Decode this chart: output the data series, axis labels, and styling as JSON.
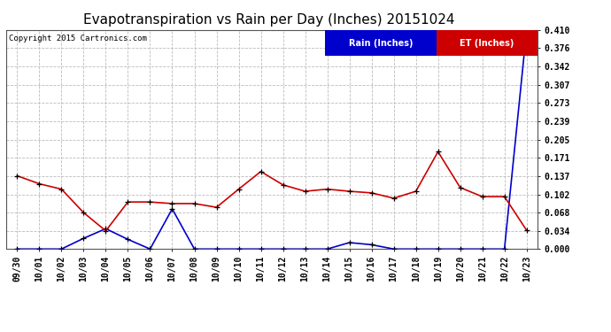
{
  "title": "Evapotranspiration vs Rain per Day (Inches) 20151024",
  "copyright": "Copyright 2015 Cartronics.com",
  "x_labels": [
    "09/30",
    "10/01",
    "10/02",
    "10/03",
    "10/04",
    "10/05",
    "10/06",
    "10/07",
    "10/08",
    "10/09",
    "10/10",
    "10/11",
    "10/12",
    "10/13",
    "10/14",
    "10/15",
    "10/16",
    "10/17",
    "10/18",
    "10/19",
    "10/20",
    "10/21",
    "10/22",
    "10/23"
  ],
  "et_values": [
    0.137,
    0.122,
    0.112,
    0.068,
    0.034,
    0.088,
    0.088,
    0.085,
    0.085,
    0.078,
    0.112,
    0.145,
    0.12,
    0.108,
    0.112,
    0.108,
    0.105,
    0.095,
    0.108,
    0.182,
    0.115,
    0.098,
    0.098,
    0.035
  ],
  "rain_values": [
    0.0,
    0.0,
    0.0,
    0.02,
    0.038,
    0.018,
    0.0,
    0.075,
    0.0,
    0.0,
    0.0,
    0.0,
    0.0,
    0.0,
    0.0,
    0.012,
    0.008,
    0.0,
    0.0,
    0.0,
    0.0,
    0.0,
    0.0,
    0.41
  ],
  "ylim": [
    0.0,
    0.41
  ],
  "yticks": [
    0.0,
    0.034,
    0.068,
    0.102,
    0.137,
    0.171,
    0.205,
    0.239,
    0.273,
    0.307,
    0.342,
    0.376,
    0.41
  ],
  "et_color": "#cc0000",
  "rain_color": "#0000cc",
  "marker_color": "#000000",
  "bg_color": "#ffffff",
  "grid_color": "#bbbbbb",
  "title_fontsize": 11,
  "tick_fontsize": 7,
  "legend_rain_bg": "#0000cc",
  "legend_et_bg": "#cc0000"
}
